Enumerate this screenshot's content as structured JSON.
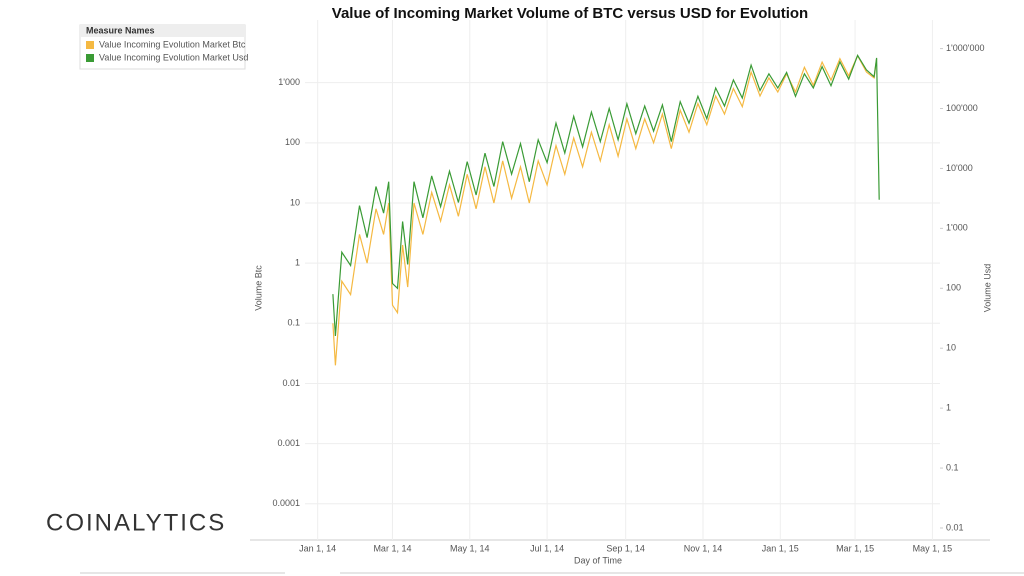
{
  "chart_data": {
    "type": "line",
    "title": "Value of Incoming Market Volume of BTC versus USD for Evolution",
    "x_label": "Day of Time",
    "y_label": "Volume Btc",
    "y2_label": "Volume Usd",
    "legend_title": "Measure Names",
    "legend": "top-left",
    "log": true,
    "grid": true,
    "logo": "COINALYTICS",
    "xlim": [
      "2013-12-22",
      "2015-05-07"
    ],
    "xticks": [
      {
        "value": "2014-01-01",
        "label": "Jan 1, 14"
      },
      {
        "value": "2014-03-01",
        "label": "Mar 1, 14"
      },
      {
        "value": "2014-05-01",
        "label": "May 1, 14"
      },
      {
        "value": "2014-07-01",
        "label": "Jul 1, 14"
      },
      {
        "value": "2014-09-01",
        "label": "Sep 1, 14"
      },
      {
        "value": "2014-11-01",
        "label": "Nov 1, 14"
      },
      {
        "value": "2015-01-01",
        "label": "Jan 1, 15"
      },
      {
        "value": "2015-03-01",
        "label": "Mar 1, 15"
      },
      {
        "value": "2015-05-01",
        "label": "May 1, 15"
      }
    ],
    "ylim": [
      2.5e-05,
      11000
    ],
    "yticks": [
      0.0001,
      0.001,
      0.01,
      0.1,
      1,
      10,
      100,
      {
        "value": 1000,
        "label": "1'000"
      }
    ],
    "y2lim": [
      0.0063,
      3000000
    ],
    "y2ticks": [
      0.01,
      0.1,
      1,
      10,
      100,
      {
        "value": 1000,
        "label": "1'000"
      },
      {
        "value": 10000,
        "label": "10'000"
      },
      {
        "value": 100000,
        "label": "100'000"
      },
      {
        "value": 1000000,
        "label": "1'000'000"
      }
    ],
    "x": [
      "2014-01-13",
      "2014-01-15",
      "2014-01-20",
      "2014-01-27",
      "2014-02-03",
      "2014-02-09",
      "2014-02-16",
      "2014-02-22",
      "2014-02-26",
      "2014-03-01",
      "2014-03-05",
      "2014-03-09",
      "2014-03-13",
      "2014-03-18",
      "2014-03-25",
      "2014-04-01",
      "2014-04-08",
      "2014-04-15",
      "2014-04-22",
      "2014-04-29",
      "2014-05-06",
      "2014-05-13",
      "2014-05-20",
      "2014-05-27",
      "2014-06-03",
      "2014-06-10",
      "2014-06-17",
      "2014-06-24",
      "2014-07-01",
      "2014-07-08",
      "2014-07-15",
      "2014-07-22",
      "2014-07-29",
      "2014-08-05",
      "2014-08-12",
      "2014-08-19",
      "2014-08-26",
      "2014-09-02",
      "2014-09-09",
      "2014-09-16",
      "2014-09-23",
      "2014-09-30",
      "2014-10-07",
      "2014-10-14",
      "2014-10-21",
      "2014-10-28",
      "2014-11-04",
      "2014-11-11",
      "2014-11-18",
      "2014-11-25",
      "2014-12-02",
      "2014-12-09",
      "2014-12-16",
      "2014-12-23",
      "2014-12-30",
      "2015-01-06",
      "2015-01-13",
      "2015-01-20",
      "2015-01-27",
      "2015-02-03",
      "2015-02-10",
      "2015-02-17",
      "2015-02-24",
      "2015-03-03",
      "2015-03-10",
      "2015-03-16",
      "2015-03-18",
      "2015-03-20"
    ],
    "series": [
      {
        "name": "Value Incoming Evolution Market Btc",
        "color": "#f5b942",
        "values": [
          0.1,
          0.02,
          0.5,
          0.3,
          3,
          1,
          8,
          3,
          10,
          0.2,
          0.15,
          2,
          0.4,
          10,
          3,
          15,
          5,
          20,
          6,
          30,
          8,
          40,
          10,
          50,
          12,
          40,
          10,
          50,
          20,
          90,
          30,
          120,
          40,
          150,
          50,
          200,
          60,
          250,
          80,
          250,
          100,
          300,
          80,
          350,
          150,
          450,
          200,
          600,
          300,
          800,
          400,
          1500,
          600,
          1200,
          700,
          1400,
          700,
          1800,
          900,
          2200,
          1100,
          2500,
          1300,
          2800,
          1500,
          1200,
          2500,
          null
        ]
      },
      {
        "name": "Value Incoming Evolution Market Usd",
        "color": "#3a9b35",
        "axis": "y2",
        "values": [
          80,
          16,
          400,
          240,
          2400,
          700,
          5000,
          1800,
          6000,
          120,
          100,
          1300,
          250,
          6000,
          1500,
          7500,
          2300,
          9000,
          2700,
          13000,
          3600,
          18000,
          5000,
          28000,
          8000,
          26000,
          6000,
          30000,
          12500,
          57000,
          18000,
          74000,
          23000,
          87000,
          28000,
          100000,
          30000,
          120000,
          38000,
          110000,
          42000,
          115000,
          28000,
          130000,
          57000,
          160000,
          68000,
          220000,
          110000,
          300000,
          150000,
          530000,
          200000,
          380000,
          220000,
          400000,
          160000,
          380000,
          220000,
          500000,
          240000,
          600000,
          310000,
          770000,
          440000,
          340000,
          700000,
          3000
        ]
      }
    ]
  }
}
